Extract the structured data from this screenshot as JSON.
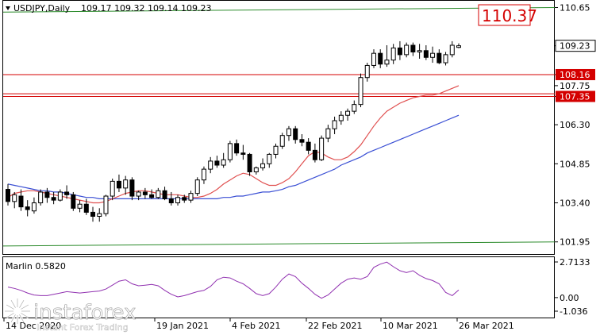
{
  "chart_data": {
    "type": "candlestick",
    "symbol_header": "USDJPY,Daily",
    "ohlc_header": "109.17 109.32 109.14 109.23",
    "last_price": "109.23",
    "target_label": "110.37",
    "price_axis_labels": [
      "110.65",
      "109.23",
      "108.16",
      "107.75",
      "107.35",
      "106.30",
      "104.85",
      "103.40",
      "101.95"
    ],
    "price_range": [
      101.5,
      110.9
    ],
    "date_labels": [
      "14 Dec 2020",
      "19 Jan 2021",
      "4 Feb 2021",
      "22 Feb 2021",
      "10 Mar 2021",
      "26 Mar 2021"
    ],
    "horizontal_levels": [
      {
        "price": 108.16,
        "color": "#d40000",
        "label": "108.16",
        "style": "box"
      },
      {
        "price": 107.45,
        "color": "#d40000",
        "label": "",
        "style": "line"
      },
      {
        "price": 107.35,
        "color": "#d40000",
        "label": "107.35",
        "style": "box"
      }
    ],
    "channel_lines": [
      {
        "color": "#2a8a2a",
        "from": [
          0,
          110.48
        ],
        "to": [
          100,
          110.65
        ]
      },
      {
        "color": "#2a8a2a",
        "from": [
          0,
          101.8
        ],
        "to": [
          100,
          101.95
        ]
      }
    ],
    "candles": [
      [
        103.9,
        104.1,
        103.3,
        103.45
      ],
      [
        103.45,
        103.8,
        103.2,
        103.7
      ],
      [
        103.65,
        103.9,
        103.1,
        103.25
      ],
      [
        103.25,
        103.5,
        102.9,
        103.15
      ],
      [
        103.1,
        103.6,
        103.0,
        103.4
      ],
      [
        103.4,
        103.9,
        103.3,
        103.8
      ],
      [
        103.8,
        103.95,
        103.4,
        103.6
      ],
      [
        103.6,
        103.8,
        103.35,
        103.5
      ],
      [
        103.5,
        103.9,
        103.45,
        103.8
      ],
      [
        103.8,
        104.05,
        103.55,
        103.7
      ],
      [
        103.7,
        103.8,
        103.1,
        103.2
      ],
      [
        103.2,
        103.5,
        103.05,
        103.35
      ],
      [
        103.35,
        103.55,
        102.95,
        103.05
      ],
      [
        103.05,
        103.25,
        102.7,
        102.9
      ],
      [
        102.9,
        103.2,
        102.7,
        103.0
      ],
      [
        103.0,
        103.7,
        102.9,
        103.65
      ],
      [
        103.65,
        104.3,
        103.5,
        104.2
      ],
      [
        104.2,
        104.45,
        103.8,
        103.95
      ],
      [
        103.95,
        104.4,
        103.7,
        104.25
      ],
      [
        104.25,
        104.35,
        103.5,
        103.65
      ],
      [
        103.65,
        103.85,
        103.5,
        103.8
      ],
      [
        103.8,
        103.95,
        103.55,
        103.7
      ],
      [
        103.7,
        103.9,
        103.55,
        103.6
      ],
      [
        103.6,
        103.95,
        103.55,
        103.85
      ],
      [
        103.85,
        104.0,
        103.5,
        103.55
      ],
      [
        103.55,
        103.8,
        103.3,
        103.4
      ],
      [
        103.4,
        103.7,
        103.3,
        103.6
      ],
      [
        103.6,
        103.7,
        103.4,
        103.5
      ],
      [
        103.5,
        103.85,
        103.4,
        103.75
      ],
      [
        103.75,
        104.35,
        103.65,
        104.25
      ],
      [
        104.25,
        104.75,
        104.1,
        104.65
      ],
      [
        104.65,
        105.1,
        104.5,
        104.95
      ],
      [
        104.95,
        105.15,
        104.7,
        104.8
      ],
      [
        104.8,
        105.25,
        104.7,
        105.0
      ],
      [
        105.0,
        105.7,
        104.9,
        105.6
      ],
      [
        105.6,
        105.75,
        105.15,
        105.25
      ],
      [
        105.25,
        105.55,
        105.0,
        105.2
      ],
      [
        105.2,
        105.25,
        104.4,
        104.55
      ],
      [
        104.55,
        104.75,
        104.45,
        104.7
      ],
      [
        104.7,
        105.05,
        104.6,
        104.85
      ],
      [
        104.85,
        105.25,
        104.7,
        105.2
      ],
      [
        105.2,
        105.6,
        105.05,
        105.5
      ],
      [
        105.5,
        106.0,
        105.4,
        105.9
      ],
      [
        105.9,
        106.25,
        105.7,
        106.15
      ],
      [
        106.15,
        106.25,
        105.6,
        105.75
      ],
      [
        105.75,
        105.95,
        105.5,
        105.65
      ],
      [
        105.65,
        105.8,
        105.2,
        105.35
      ],
      [
        105.35,
        105.6,
        104.9,
        105.0
      ],
      [
        105.0,
        105.9,
        104.95,
        105.8
      ],
      [
        105.8,
        106.3,
        105.65,
        106.15
      ],
      [
        106.15,
        106.6,
        105.95,
        106.45
      ],
      [
        106.45,
        106.8,
        106.3,
        106.65
      ],
      [
        106.65,
        106.9,
        106.45,
        106.8
      ],
      [
        106.8,
        107.2,
        106.7,
        107.05
      ],
      [
        107.05,
        108.2,
        106.95,
        108.05
      ],
      [
        108.05,
        108.6,
        107.9,
        108.5
      ],
      [
        108.5,
        109.1,
        108.4,
        108.95
      ],
      [
        108.95,
        109.1,
        108.4,
        108.55
      ],
      [
        108.55,
        109.25,
        108.45,
        108.7
      ],
      [
        108.7,
        109.3,
        108.55,
        109.15
      ],
      [
        109.15,
        109.4,
        108.7,
        108.9
      ],
      [
        108.9,
        109.35,
        108.8,
        109.25
      ],
      [
        109.25,
        109.35,
        108.85,
        109.0
      ],
      [
        109.0,
        109.3,
        108.75,
        109.05
      ],
      [
        109.05,
        109.25,
        108.7,
        108.8
      ],
      [
        108.8,
        109.2,
        108.6,
        108.95
      ],
      [
        108.95,
        109.1,
        108.55,
        108.6
      ],
      [
        108.6,
        109.0,
        108.5,
        108.9
      ],
      [
        108.9,
        109.4,
        108.8,
        109.25
      ],
      [
        109.17,
        109.32,
        109.14,
        109.23
      ]
    ],
    "ma_fast": {
      "color": "#e05050",
      "values": [
        103.6,
        103.75,
        103.8,
        103.85,
        103.85,
        103.8,
        103.75,
        103.7,
        103.65,
        103.6,
        103.55,
        103.5,
        103.45,
        103.4,
        103.4,
        103.45,
        103.55,
        103.65,
        103.75,
        103.8,
        103.85,
        103.85,
        103.8,
        103.75,
        103.7,
        103.7,
        103.7,
        103.65,
        103.6,
        103.6,
        103.65,
        103.75,
        103.9,
        104.1,
        104.25,
        104.4,
        104.5,
        104.45,
        104.3,
        104.15,
        104.05,
        104.05,
        104.15,
        104.3,
        104.55,
        104.85,
        105.15,
        105.3,
        105.25,
        105.1,
        105.0,
        105.0,
        105.1,
        105.3,
        105.55,
        105.9,
        106.25,
        106.55,
        106.8,
        106.95,
        107.1,
        107.2,
        107.3,
        107.35,
        107.4,
        107.4,
        107.45,
        107.55,
        107.65,
        107.75
      ]
    },
    "ma_slow": {
      "color": "#3a4fd4",
      "values": [
        104.1,
        104.05,
        104.0,
        103.95,
        103.9,
        103.85,
        103.85,
        103.8,
        103.8,
        103.75,
        103.7,
        103.65,
        103.6,
        103.6,
        103.55,
        103.55,
        103.55,
        103.55,
        103.55,
        103.55,
        103.55,
        103.55,
        103.55,
        103.55,
        103.55,
        103.55,
        103.55,
        103.55,
        103.55,
        103.55,
        103.55,
        103.55,
        103.55,
        103.6,
        103.6,
        103.65,
        103.65,
        103.7,
        103.75,
        103.8,
        103.8,
        103.85,
        103.9,
        104.0,
        104.05,
        104.15,
        104.25,
        104.35,
        104.45,
        104.55,
        104.65,
        104.8,
        104.9,
        105.0,
        105.1,
        105.25,
        105.35,
        105.45,
        105.55,
        105.65,
        105.75,
        105.85,
        105.95,
        106.05,
        106.15,
        106.25,
        106.35,
        106.45,
        106.55,
        106.65
      ]
    },
    "oscillator": {
      "label": "Marlin 0.5820",
      "axis_labels": [
        "2.7133",
        "0.00",
        "-1.036"
      ],
      "range": [
        -1.036,
        2.7133
      ],
      "color": "#9030b0",
      "values": [
        0.8,
        0.7,
        0.55,
        0.35,
        0.2,
        0.15,
        0.15,
        0.25,
        0.35,
        0.45,
        0.4,
        0.35,
        0.4,
        0.45,
        0.5,
        0.65,
        0.95,
        1.25,
        1.35,
        1.05,
        0.9,
        0.95,
        1.0,
        0.9,
        0.55,
        0.25,
        0.05,
        0.15,
        0.3,
        0.45,
        0.55,
        0.85,
        1.35,
        1.55,
        1.5,
        1.25,
        1.05,
        0.7,
        0.3,
        0.15,
        0.3,
        0.8,
        1.4,
        1.8,
        1.6,
        1.1,
        0.7,
        0.25,
        -0.05,
        0.2,
        0.65,
        1.1,
        1.4,
        1.5,
        1.4,
        1.6,
        2.3,
        2.55,
        2.7,
        2.35,
        2.05,
        1.9,
        2.05,
        1.7,
        1.45,
        1.3,
        1.05,
        0.4,
        0.15,
        0.58
      ]
    }
  },
  "watermark": {
    "brand": "instaforex",
    "tagline": "Instant Forex Trading",
    "logo_icon": "sunburst-icon"
  }
}
